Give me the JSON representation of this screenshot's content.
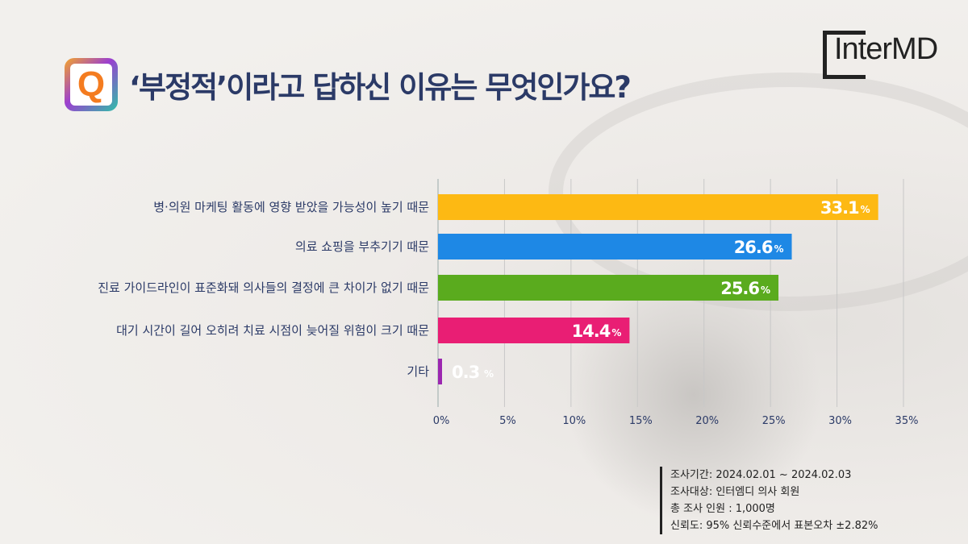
{
  "header": {
    "title": "‘부정적’이라고 답하신 이유는 무엇인가요?",
    "q_icon": "Q",
    "logo": "InterMD"
  },
  "chart_data": {
    "type": "bar",
    "orientation": "horizontal",
    "categories": [
      "병·의원 마케팅 활동에 영향 받았을 가능성이 높기 때문",
      "의료 쇼핑을 부추기기 때문",
      "진료 가이드라인이 표준화돼 의사들의 결정에 큰 차이가 없기 때문",
      "대기 시간이 길어 오히려 치료 시점이 늦어질 위험이 크기 때문",
      "기타"
    ],
    "values": [
      33.1,
      26.6,
      25.6,
      14.4,
      0.3
    ],
    "value_labels": [
      "33.1",
      "26.6",
      "25.6",
      "14.4",
      "0.3"
    ],
    "unit": "%",
    "colors": [
      "#fdb913",
      "#1e88e5",
      "#5aab1e",
      "#e91e74",
      "#9c27b0"
    ],
    "xlim": [
      0,
      35
    ],
    "ticks": [
      "0%",
      "5%",
      "10%",
      "15%",
      "20%",
      "25%",
      "30%",
      "35%"
    ],
    "grid": true
  },
  "notes": [
    "조사기간: 2024.02.01 ~ 2024.02.03",
    "조사대상: 인터엠디 의사 회원",
    "총 조사 인원 : 1,000명",
    "신뢰도: 95% 신뢰수준에서 표본오차 ±2.82%"
  ]
}
